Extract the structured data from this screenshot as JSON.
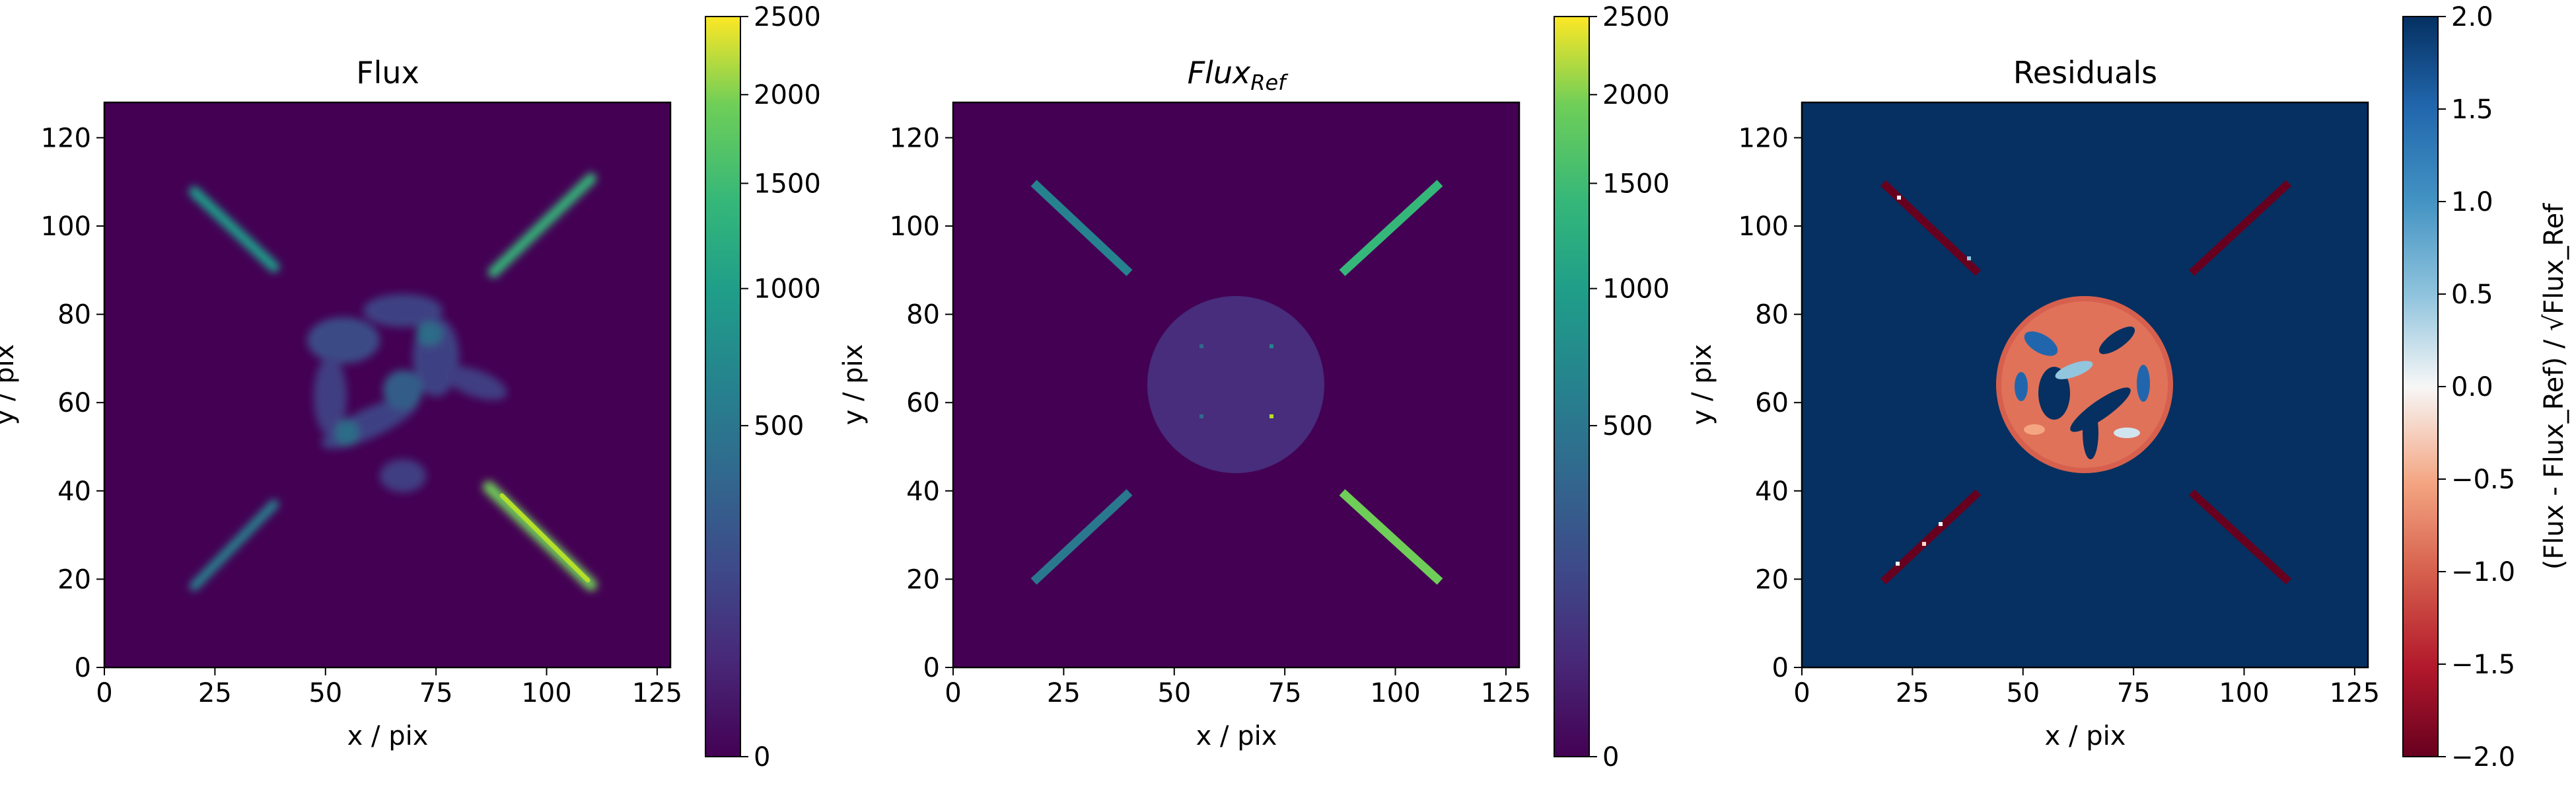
{
  "chart_data": [
    {
      "type": "heatmap",
      "title": "Flux",
      "xlabel": "x / pix",
      "ylabel": "y / pix",
      "xlim": [
        0,
        128
      ],
      "ylim": [
        0,
        128
      ],
      "xticks": [
        "0",
        "25",
        "50",
        "75",
        "100",
        "125"
      ],
      "yticks": [
        "0",
        "20",
        "40",
        "60",
        "80",
        "100",
        "120"
      ],
      "colormap": "viridis",
      "colorbar": {
        "scale": "sqrt",
        "range": [
          0,
          2500
        ],
        "ticks": [
          "0",
          "500",
          "1000",
          "1500",
          "2000",
          "2500"
        ],
        "label": ""
      },
      "features": {
        "background": 0,
        "spikes": [
          {
            "from": [
              20,
              107
            ],
            "to": [
              38,
              90
            ],
            "value": 700
          },
          {
            "from": [
              88,
              90
            ],
            "to": [
              110,
              110
            ],
            "value": 850
          },
          {
            "from": [
              20,
              18
            ],
            "to": [
              38,
              37
            ],
            "value": 550
          },
          {
            "from": [
              90,
              38
            ],
            "to": [
              110,
              18
            ],
            "value": 1600
          }
        ],
        "center_filaments": "diffuse blobs of about 150-300 centred near (62, 60)"
      }
    },
    {
      "type": "heatmap",
      "title": "Flux",
      "title_subscript": "Ref",
      "xlabel": "x / pix",
      "ylabel": "y / pix",
      "xlim": [
        0,
        128
      ],
      "ylim": [
        0,
        128
      ],
      "xticks": [
        "0",
        "25",
        "50",
        "75",
        "100",
        "125"
      ],
      "yticks": [
        "0",
        "20",
        "40",
        "60",
        "80",
        "100",
        "120"
      ],
      "colormap": "viridis",
      "colorbar": {
        "scale": "sqrt",
        "range": [
          0,
          2500
        ],
        "ticks": [
          "0",
          "500",
          "1000",
          "1500",
          "2000",
          "2500"
        ],
        "label": ""
      },
      "features": {
        "background": 0,
        "disk": {
          "center": [
            64,
            64
          ],
          "radius": 20,
          "value": 80
        },
        "disk_points": [
          {
            "x": 56,
            "y": 72,
            "value": 300
          },
          {
            "x": 72,
            "y": 72,
            "value": 400
          },
          {
            "x": 56,
            "y": 56,
            "value": 300
          },
          {
            "x": 72,
            "y": 56,
            "value": 1500
          }
        ],
        "spikes": [
          {
            "from": [
              18,
              110
            ],
            "to": [
              40,
              89
            ],
            "value": 600
          },
          {
            "from": [
              88,
              89
            ],
            "to": [
              110,
              110
            ],
            "value": 1000
          },
          {
            "from": [
              18,
              18
            ],
            "to": [
              40,
              39
            ],
            "value": 600
          },
          {
            "from": [
              88,
              39
            ],
            "to": [
              110,
              18
            ],
            "value": 1200
          }
        ]
      }
    },
    {
      "type": "heatmap",
      "title": "Residuals",
      "xlabel": "x / pix",
      "ylabel": "y / pix",
      "xlim": [
        0,
        128
      ],
      "ylim": [
        0,
        128
      ],
      "xticks": [
        "0",
        "25",
        "50",
        "75",
        "100",
        "125"
      ],
      "yticks": [
        "0",
        "20",
        "40",
        "60",
        "80",
        "100",
        "120"
      ],
      "colormap": "RdBu",
      "colorbar": {
        "scale": "linear",
        "range": [
          -2.0,
          2.0
        ],
        "ticks": [
          "−2.0",
          "−1.5",
          "−1.0",
          "−0.5",
          "0.0",
          "0.5",
          "1.0",
          "1.5",
          "2.0"
        ],
        "label": "(Flux - Flux_Ref) / √Flux_Ref"
      },
      "features": {
        "background": 2.0,
        "disk": {
          "center": [
            64,
            64
          ],
          "radius": 20,
          "value": -1.3
        },
        "spikes": [
          {
            "from": [
              18,
              110
            ],
            "to": [
              40,
              89
            ],
            "value": -2.0
          },
          {
            "from": [
              88,
              89
            ],
            "to": [
              110,
              110
            ],
            "value": -2.0
          },
          {
            "from": [
              18,
              18
            ],
            "to": [
              40,
              39
            ],
            "value": -2.0
          },
          {
            "from": [
              88,
              39
            ],
            "to": [
              110,
              18
            ],
            "value": -2.0
          }
        ]
      }
    }
  ],
  "colors": {
    "viridis_low": "#440154",
    "viridis_high": "#fde725",
    "rdbu_low": "#67001f",
    "rdbu_high": "#053061"
  }
}
